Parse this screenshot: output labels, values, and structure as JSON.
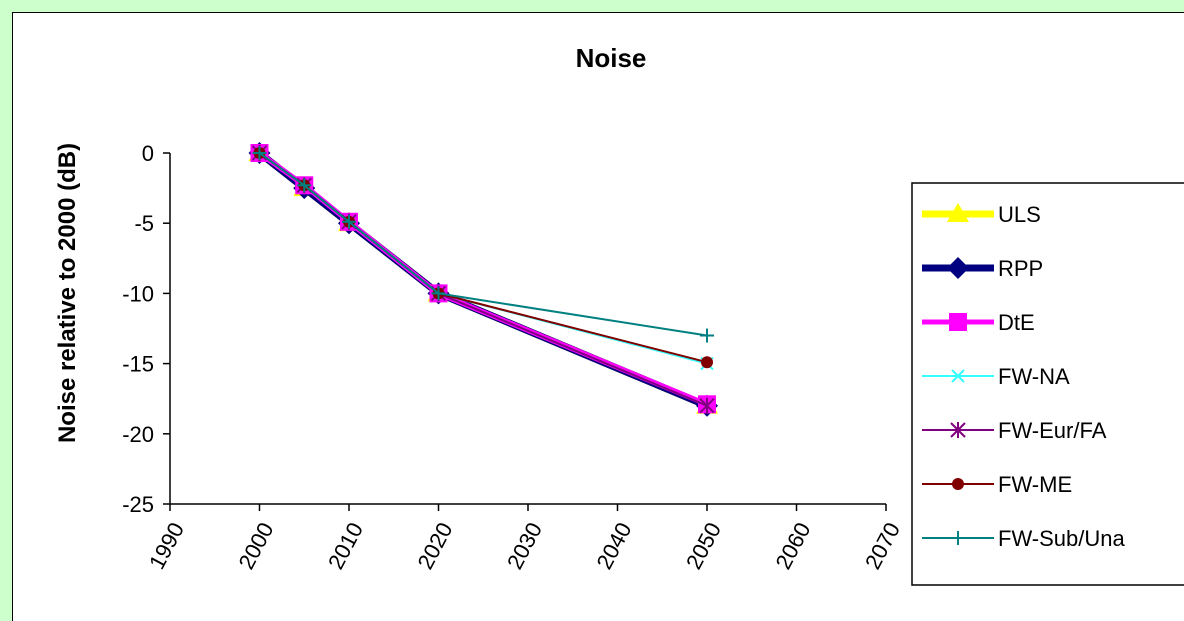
{
  "chart_data": {
    "type": "line",
    "title": "Noise",
    "xlabel": "",
    "ylabel": "Noise relative to 2000 (dB)",
    "xlim": [
      1990,
      2070
    ],
    "ylim": [
      -25,
      0
    ],
    "x_ticks": [
      "1990",
      "2000",
      "2010",
      "2020",
      "2030",
      "2040",
      "2050",
      "2060",
      "2070"
    ],
    "y_ticks": [
      "0",
      "-5",
      "-10",
      "-15",
      "-20",
      "-25"
    ],
    "grid": false,
    "legend_position": "right",
    "x": [
      2000,
      2005,
      2010,
      2020,
      2050
    ],
    "series": [
      {
        "name": "ULS",
        "color": "#ffff00",
        "marker": "triangle",
        "values": [
          0,
          -2.5,
          -5,
          -10,
          -18
        ]
      },
      {
        "name": "RPP",
        "color": "#000080",
        "marker": "diamond",
        "values": [
          0,
          -2.5,
          -5,
          -10,
          -18
        ]
      },
      {
        "name": "DtE",
        "color": "#ff00ff",
        "marker": "square",
        "values": [
          0,
          -2.3,
          -4.9,
          -10,
          -17.9
        ]
      },
      {
        "name": "FW-NA",
        "color": "#33ffff",
        "marker": "x",
        "values": [
          0,
          -2.3,
          -4.9,
          -10,
          -15
        ]
      },
      {
        "name": "FW-Eur/FA",
        "color": "#800080",
        "marker": "star",
        "values": [
          0,
          -2.3,
          -4.9,
          -10,
          -18
        ]
      },
      {
        "name": "FW-ME",
        "color": "#800000",
        "marker": "circle",
        "values": [
          0,
          -2.3,
          -4.9,
          -10,
          -14.9
        ]
      },
      {
        "name": "FW-Sub/Una",
        "color": "#008080",
        "marker": "plus",
        "values": [
          0,
          -2.3,
          -4.9,
          -10,
          -13
        ]
      }
    ]
  }
}
